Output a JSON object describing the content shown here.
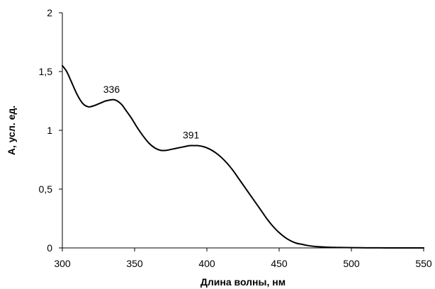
{
  "chart_data": {
    "type": "line",
    "xlabel": "Длина волны, нм",
    "ylabel": "А, усл. ед.",
    "xlim": [
      300,
      550
    ],
    "ylim": [
      0,
      2
    ],
    "xticks": [
      300,
      350,
      400,
      450,
      500,
      550
    ],
    "yticks": [
      0,
      0.5,
      1,
      1.5,
      2
    ],
    "xtick_labels": [
      "300",
      "350",
      "400",
      "450",
      "500",
      "550"
    ],
    "ytick_labels": [
      "0",
      "0,5",
      "1",
      "1,5",
      "2"
    ],
    "grid": false,
    "series": [
      {
        "x": [
          300,
          303,
          306,
          310,
          314,
          318,
          322,
          326,
          330,
          334,
          336,
          338,
          341,
          344,
          348,
          352,
          356,
          360,
          364,
          368,
          372,
          376,
          380,
          384,
          388,
          391,
          394,
          398,
          402,
          406,
          410,
          414,
          418,
          422,
          426,
          430,
          434,
          438,
          442,
          446,
          450,
          454,
          458,
          462,
          466,
          470,
          475,
          480,
          485,
          490,
          495,
          500,
          510,
          520,
          530,
          540,
          550
        ],
        "y": [
          1.55,
          1.5,
          1.42,
          1.31,
          1.23,
          1.2,
          1.21,
          1.23,
          1.25,
          1.26,
          1.26,
          1.25,
          1.22,
          1.17,
          1.1,
          1.02,
          0.95,
          0.89,
          0.85,
          0.83,
          0.83,
          0.84,
          0.85,
          0.86,
          0.87,
          0.87,
          0.87,
          0.86,
          0.84,
          0.81,
          0.77,
          0.72,
          0.66,
          0.59,
          0.52,
          0.45,
          0.38,
          0.31,
          0.24,
          0.18,
          0.13,
          0.09,
          0.06,
          0.04,
          0.03,
          0.02,
          0.012,
          0.008,
          0.005,
          0.004,
          0.003,
          0.002,
          0.001,
          0.0005,
          0,
          0,
          0
        ]
      }
    ],
    "annotations": [
      {
        "text": "336",
        "x": 336,
        "y": 1.26
      },
      {
        "text": "391",
        "x": 391,
        "y": 0.87
      }
    ]
  }
}
